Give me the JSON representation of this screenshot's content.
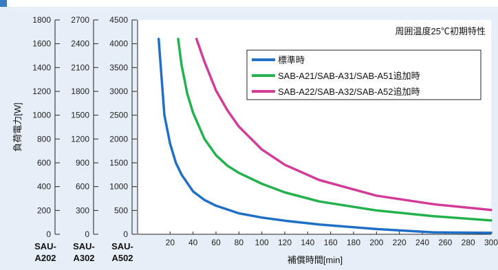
{
  "chart_data": {
    "type": "line",
    "note": "周囲温度25℃初期特性",
    "ylabel": "負荷電力[W]",
    "xlabel": "補償時間[min]",
    "xlim": [
      0,
      300
    ],
    "x_ticks": [
      20,
      40,
      60,
      80,
      100,
      120,
      140,
      160,
      180,
      200,
      220,
      240,
      260,
      280,
      300
    ],
    "y_axes": [
      {
        "model": "SAU-A202",
        "ticks": [
          0,
          200,
          400,
          600,
          800,
          1000,
          1200,
          1400,
          1600,
          1800
        ],
        "ylim": [
          0,
          1800
        ]
      },
      {
        "model": "SAU-A302",
        "ticks": [
          0,
          300,
          600,
          900,
          1200,
          1500,
          1800,
          2100,
          2400,
          2700
        ],
        "ylim": [
          0,
          2700
        ]
      },
      {
        "model": "SAU-A502",
        "ticks": [
          0,
          500,
          1000,
          1500,
          2000,
          2500,
          3000,
          3500,
          4000,
          4500
        ],
        "ylim": [
          0,
          4500
        ]
      }
    ],
    "series": [
      {
        "name": "標準時",
        "color": "#1f6fc6",
        "x": [
          10,
          15,
          20,
          25,
          30,
          40,
          50,
          60,
          80,
          100,
          120,
          150,
          200,
          250,
          300
        ],
        "y": [
          4100,
          2500,
          1900,
          1500,
          1250,
          900,
          720,
          600,
          440,
          350,
          285,
          205,
          110,
          40,
          30
        ]
      },
      {
        "name": "SAB-A21/SAB-A31/SAB-A51追加時",
        "color": "#22b14c",
        "x": [
          27,
          30,
          35,
          40,
          50,
          60,
          70,
          80,
          100,
          120,
          150,
          200,
          250,
          300
        ],
        "y": [
          4100,
          3550,
          2950,
          2550,
          2000,
          1660,
          1440,
          1290,
          1060,
          880,
          690,
          500,
          380,
          290
        ]
      },
      {
        "name": "SAB-A22/SAB-A32/SAB-A52追加時",
        "color": "#d23b97",
        "x": [
          43,
          50,
          60,
          70,
          80,
          100,
          120,
          150,
          200,
          250,
          300
        ],
        "y": [
          4100,
          3620,
          3020,
          2600,
          2260,
          1780,
          1460,
          1140,
          810,
          630,
          510
        ]
      }
    ]
  }
}
